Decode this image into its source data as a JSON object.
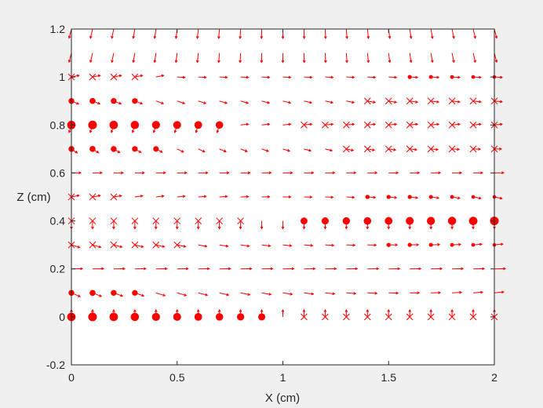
{
  "chart_data": {
    "type": "scatter",
    "title": "",
    "xlabel": "X (cm)",
    "ylabel": "Z (cm)",
    "xlim": [
      0,
      2
    ],
    "ylim": [
      -0.2,
      1.2
    ],
    "x_ticks": [
      "0",
      "0.5",
      "1",
      "1.5",
      "2"
    ],
    "y_ticks": [
      "-0.2",
      "0",
      "0.2",
      "0.4",
      "0.6",
      "0.8",
      "1",
      "1.2"
    ],
    "grid": false,
    "legend": "none",
    "marker_color": "#ff0000",
    "x_grid": [
      0,
      0.1,
      0.2,
      0.3,
      0.4,
      0.5,
      0.6,
      0.7,
      0.8,
      0.9,
      1.0,
      1.1,
      1.2,
      1.3,
      1.4,
      1.5,
      1.6,
      1.7,
      1.8,
      1.9,
      2.0
    ],
    "z_grid": [
      0,
      0.1,
      0.2,
      0.3,
      0.4,
      0.5,
      0.6,
      0.7,
      0.8,
      0.9,
      1.0,
      1.1,
      1.2
    ],
    "series": [
      {
        "marker": "dot (field out of plane)",
        "points": [
          {
            "x": 0,
            "z": 0
          },
          {
            "x": 0.1,
            "z": 0
          },
          {
            "x": 0.2,
            "z": 0
          },
          {
            "x": 0.3,
            "z": 0
          },
          {
            "x": 0.4,
            "z": 0
          },
          {
            "x": 0.5,
            "z": 0
          },
          {
            "x": 0.6,
            "z": 0
          },
          {
            "x": 0.7,
            "z": 0
          },
          {
            "x": 0.8,
            "z": 0
          },
          {
            "x": 0.9,
            "z": 0
          },
          {
            "x": 0,
            "z": 0.1
          },
          {
            "x": 0.1,
            "z": 0.1
          },
          {
            "x": 0.2,
            "z": 0.1
          },
          {
            "x": 0.3,
            "z": 0.1
          },
          {
            "x": 0,
            "z": 0.7
          },
          {
            "x": 0.1,
            "z": 0.7
          },
          {
            "x": 0.2,
            "z": 0.7
          },
          {
            "x": 0.3,
            "z": 0.7
          },
          {
            "x": 0.4,
            "z": 0.7
          },
          {
            "x": 0,
            "z": 0.8
          },
          {
            "x": 0.1,
            "z": 0.8
          },
          {
            "x": 0.2,
            "z": 0.8
          },
          {
            "x": 0.3,
            "z": 0.8
          },
          {
            "x": 0.4,
            "z": 0.8
          },
          {
            "x": 0.5,
            "z": 0.8
          },
          {
            "x": 0.6,
            "z": 0.8
          },
          {
            "x": 0.7,
            "z": 0.8
          },
          {
            "x": 0,
            "z": 0.9
          },
          {
            "x": 0.1,
            "z": 0.9
          },
          {
            "x": 0.2,
            "z": 0.9
          },
          {
            "x": 0.3,
            "z": 0.9
          },
          {
            "x": 1.1,
            "z": 0.4
          },
          {
            "x": 1.2,
            "z": 0.4
          },
          {
            "x": 1.3,
            "z": 0.4
          },
          {
            "x": 1.4,
            "z": 0.4
          },
          {
            "x": 1.5,
            "z": 0.4
          },
          {
            "x": 1.6,
            "z": 0.4
          },
          {
            "x": 1.7,
            "z": 0.4
          },
          {
            "x": 1.8,
            "z": 0.4
          },
          {
            "x": 1.9,
            "z": 0.4
          },
          {
            "x": 2.0,
            "z": 0.4
          },
          {
            "x": 1.5,
            "z": 0.3
          },
          {
            "x": 1.6,
            "z": 0.3
          },
          {
            "x": 1.7,
            "z": 0.3
          },
          {
            "x": 1.8,
            "z": 0.3
          },
          {
            "x": 1.9,
            "z": 0.3
          },
          {
            "x": 2.0,
            "z": 0.3
          },
          {
            "x": 1.4,
            "z": 0.5
          },
          {
            "x": 1.5,
            "z": 0.5
          },
          {
            "x": 1.6,
            "z": 0.5
          },
          {
            "x": 1.7,
            "z": 0.5
          },
          {
            "x": 1.8,
            "z": 0.5
          },
          {
            "x": 1.9,
            "z": 0.5
          },
          {
            "x": 2.0,
            "z": 0.5
          },
          {
            "x": 1.6,
            "z": 1.0
          },
          {
            "x": 1.7,
            "z": 1.0
          },
          {
            "x": 1.8,
            "z": 1.0
          },
          {
            "x": 1.9,
            "z": 1.0
          },
          {
            "x": 2.0,
            "z": 1.0
          }
        ]
      },
      {
        "marker": "x (field into plane)",
        "points": [
          {
            "x": 1.1,
            "z": 0
          },
          {
            "x": 1.2,
            "z": 0
          },
          {
            "x": 1.3,
            "z": 0
          },
          {
            "x": 1.4,
            "z": 0
          },
          {
            "x": 1.5,
            "z": 0
          },
          {
            "x": 1.6,
            "z": 0
          },
          {
            "x": 1.7,
            "z": 0
          },
          {
            "x": 1.8,
            "z": 0
          },
          {
            "x": 1.9,
            "z": 0
          },
          {
            "x": 2.0,
            "z": 0
          },
          {
            "x": 0,
            "z": 0.4
          },
          {
            "x": 0.1,
            "z": 0.4
          },
          {
            "x": 0.2,
            "z": 0.4
          },
          {
            "x": 0.3,
            "z": 0.4
          },
          {
            "x": 0.4,
            "z": 0.4
          },
          {
            "x": 0.5,
            "z": 0.4
          },
          {
            "x": 0.6,
            "z": 0.4
          },
          {
            "x": 0.7,
            "z": 0.4
          },
          {
            "x": 0.8,
            "z": 0.4
          },
          {
            "x": 0,
            "z": 0.3
          },
          {
            "x": 0.1,
            "z": 0.3
          },
          {
            "x": 0.2,
            "z": 0.3
          },
          {
            "x": 0.3,
            "z": 0.3
          },
          {
            "x": 0.4,
            "z": 0.3
          },
          {
            "x": 0.5,
            "z": 0.3
          },
          {
            "x": 0,
            "z": 0.5
          },
          {
            "x": 0.1,
            "z": 0.5
          },
          {
            "x": 0.2,
            "z": 0.5
          },
          {
            "x": 1.1,
            "z": 0.8
          },
          {
            "x": 1.2,
            "z": 0.8
          },
          {
            "x": 1.3,
            "z": 0.8
          },
          {
            "x": 1.4,
            "z": 0.8
          },
          {
            "x": 1.5,
            "z": 0.8
          },
          {
            "x": 1.6,
            "z": 0.8
          },
          {
            "x": 1.7,
            "z": 0.8
          },
          {
            "x": 1.8,
            "z": 0.8
          },
          {
            "x": 1.9,
            "z": 0.8
          },
          {
            "x": 2.0,
            "z": 0.8
          },
          {
            "x": 1.3,
            "z": 0.7
          },
          {
            "x": 1.4,
            "z": 0.7
          },
          {
            "x": 1.5,
            "z": 0.7
          },
          {
            "x": 1.6,
            "z": 0.7
          },
          {
            "x": 1.7,
            "z": 0.7
          },
          {
            "x": 1.8,
            "z": 0.7
          },
          {
            "x": 1.9,
            "z": 0.7
          },
          {
            "x": 2.0,
            "z": 0.7
          },
          {
            "x": 1.4,
            "z": 0.9
          },
          {
            "x": 1.5,
            "z": 0.9
          },
          {
            "x": 1.6,
            "z": 0.9
          },
          {
            "x": 1.7,
            "z": 0.9
          },
          {
            "x": 1.8,
            "z": 0.9
          },
          {
            "x": 1.9,
            "z": 0.9
          },
          {
            "x": 2.0,
            "z": 0.9
          },
          {
            "x": 0,
            "z": 1.0
          },
          {
            "x": 0.1,
            "z": 1.0
          },
          {
            "x": 0.2,
            "z": 1.0
          },
          {
            "x": 0.3,
            "z": 1.0
          }
        ]
      }
    ]
  }
}
